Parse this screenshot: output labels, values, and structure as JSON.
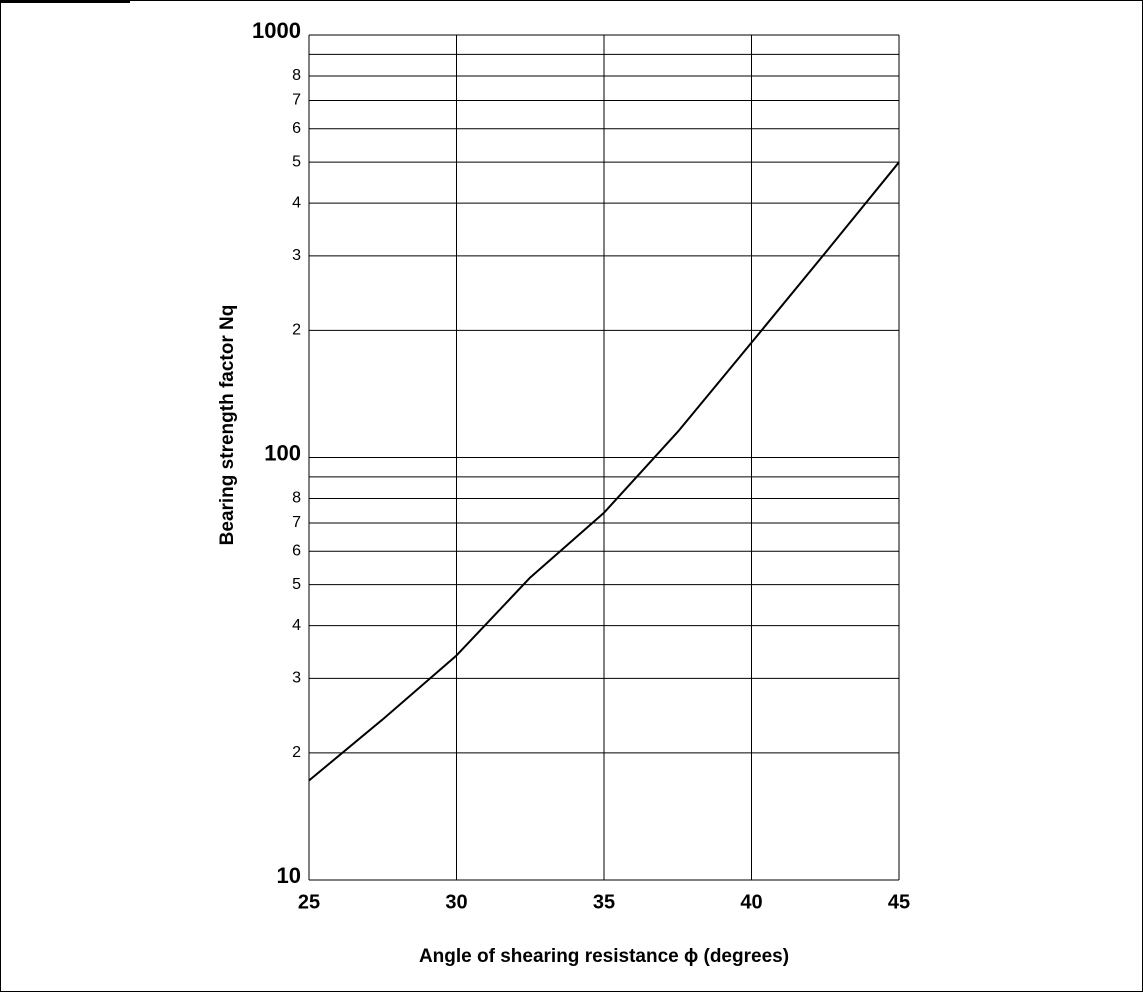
{
  "chart_data": {
    "type": "line",
    "log_y": true,
    "grid": true,
    "x_label": "Angle of shearing resistance ϕ  (degrees)",
    "y_label": "Bearing strength factor Nq",
    "x": [
      25,
      27.5,
      30,
      32.5,
      35,
      37.5,
      40,
      42.5,
      45
    ],
    "series": [
      {
        "name": "Nq",
        "color": "#000000",
        "values": [
          17.2,
          24,
          34,
          52,
          74,
          115,
          187,
          305,
          500
        ]
      }
    ],
    "xlim": [
      25,
      45
    ],
    "xticks": [
      25,
      30,
      35,
      40,
      45
    ],
    "ylim": [
      10,
      1000
    ],
    "yticks": [
      10,
      {
        "value": 20,
        "label": "2"
      },
      {
        "value": 30,
        "label": "3"
      },
      {
        "value": 40,
        "label": "4"
      },
      {
        "value": 50,
        "label": "5"
      },
      {
        "value": 60,
        "label": "6"
      },
      {
        "value": 70,
        "label": "7"
      },
      {
        "value": 80,
        "label": "8"
      },
      100,
      {
        "value": 200,
        "label": "2"
      },
      {
        "value": 300,
        "label": "3"
      },
      {
        "value": 400,
        "label": "4"
      },
      {
        "value": 500,
        "label": "5"
      },
      {
        "value": 600,
        "label": "6"
      },
      {
        "value": 700,
        "label": "7"
      },
      {
        "value": 800,
        "label": "8"
      },
      1000
    ],
    "y_minor_gridlines": [
      90,
      900
    ]
  }
}
